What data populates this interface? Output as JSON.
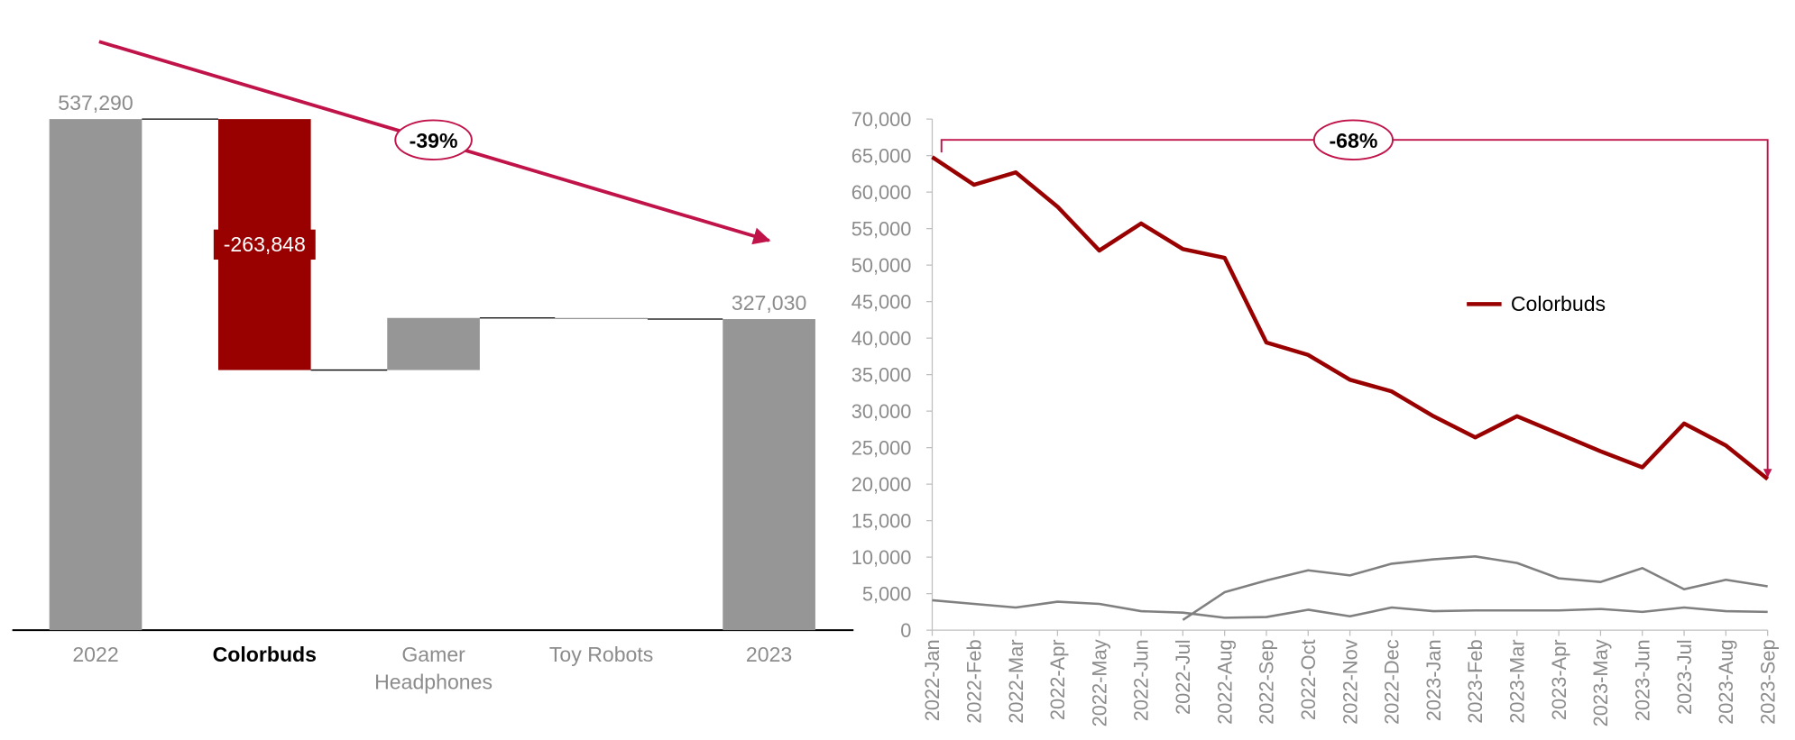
{
  "chart_data": [
    {
      "type": "waterfall",
      "categories": [
        "2022",
        "Colorbuds",
        "Gamer Headphones",
        "Toy Robots",
        "2023"
      ],
      "values": [
        537290,
        -263848,
        54800,
        -1212,
        327030
      ],
      "value_labels": [
        "537,290",
        "-263,848",
        null,
        null,
        "327,030"
      ],
      "is_total": [
        true,
        false,
        false,
        false,
        true
      ],
      "colors": [
        "#969696",
        "#990000",
        "#969696",
        "#969696",
        "#969696"
      ],
      "annotation": "-39%"
    },
    {
      "type": "line",
      "categories": [
        "2022-Jan",
        "2022-Feb",
        "2022-Mar",
        "2022-Apr",
        "2022-May",
        "2022-Jun",
        "2022-Jul",
        "2022-Aug",
        "2022-Sep",
        "2022-Oct",
        "2022-Nov",
        "2022-Dec",
        "2023-Jan",
        "2023-Feb",
        "2023-Mar",
        "2023-Apr",
        "2023-May",
        "2023-Jun",
        "2023-Jul",
        "2023-Aug",
        "2023-Sep"
      ],
      "series": [
        {
          "name": "Colorbuds",
          "color": "#990000",
          "values": [
            64800,
            61000,
            62700,
            58000,
            52000,
            55700,
            52200,
            51000,
            39400,
            37700,
            34300,
            32700,
            29300,
            26400,
            29300,
            26900,
            24500,
            22300,
            28300,
            25300,
            20700
          ]
        },
        {
          "color": "#808080",
          "values": [
            4100,
            3600,
            3100,
            3900,
            3600,
            2600,
            2400,
            1700,
            1800,
            2800,
            1900,
            3100,
            2600,
            2700,
            2700,
            2700,
            2900,
            2500,
            3100,
            2600,
            2500
          ]
        },
        {
          "color": "#808080",
          "values": [
            null,
            null,
            null,
            null,
            null,
            null,
            1400,
            5200,
            6800,
            8200,
            7500,
            9100,
            9700,
            10100,
            9200,
            7100,
            6600,
            8500,
            5600,
            6900,
            6000
          ]
        }
      ],
      "ylim": [
        0,
        70000
      ],
      "yticks": [
        {
          "value": 0,
          "label": "0"
        },
        {
          "value": 5000,
          "label": "5,000"
        },
        {
          "value": 10000,
          "label": "10,000"
        },
        {
          "value": 15000,
          "label": "15,000"
        },
        {
          "value": 20000,
          "label": "20,000"
        },
        {
          "value": 25000,
          "label": "25,000"
        },
        {
          "value": 30000,
          "label": "30,000"
        },
        {
          "value": 35000,
          "label": "35,000"
        },
        {
          "value": 40000,
          "label": "40,000"
        },
        {
          "value": 45000,
          "label": "45,000"
        },
        {
          "value": 50000,
          "label": "50,000"
        },
        {
          "value": 55000,
          "label": "55,000"
        },
        {
          "value": 60000,
          "label": "60,000"
        },
        {
          "value": 65000,
          "label": "65,000"
        },
        {
          "value": 70000,
          "label": "70,000"
        }
      ],
      "legend": "right",
      "annotation": "-68%"
    }
  ]
}
